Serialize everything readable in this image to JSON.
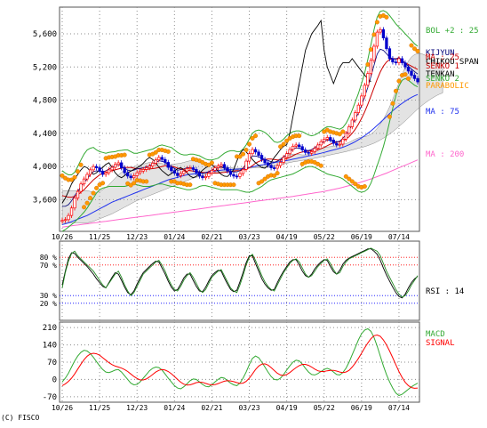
{
  "copyright": "(C) FISCO",
  "colors": {
    "grid": "#8c8c8c",
    "price_up": "#ff0000",
    "price_down": "#0000cc",
    "bollinger": "#33aa33",
    "ma25": "#cc0000",
    "ma75": "#2233ee",
    "ma200": "#ff66cc",
    "kijun": "#000077",
    "tenkan": "#000000",
    "chikou": "#000000",
    "cloud": "#b0b0b0",
    "parabolic": "#ff9900",
    "rsi": "#228822",
    "rsi2": "#000000",
    "macd": "#33aa33",
    "signal": "#ff0000",
    "ref_high": "#ff0000",
    "ref_low": "#0000ff"
  },
  "chart_data": [
    {
      "type": "line",
      "panel": "price",
      "x_tick_labels": [
        "10/26",
        "11/25",
        "12/23",
        "01/24",
        "02/21",
        "03/23",
        "04/19",
        "05/22",
        "06/19",
        "07/14"
      ],
      "y_tick_labels": [
        "5,600",
        "5,200",
        "4,800",
        "4,400",
        "4,000",
        "3,600"
      ],
      "y_ticks": [
        5600,
        5200,
        4800,
        4400,
        4000,
        3600
      ],
      "ylim": [
        3240,
        5900
      ],
      "grid": true,
      "legend": [
        "BOL +2 : 25",
        "KIJYUN",
        "MA : 25",
        "CHIKOU SPAN",
        "SENKO 1",
        "TENKAN",
        "SENKO 2",
        "PARABOLIC",
        "MA : 75",
        "MA : 200"
      ],
      "close": [
        3350,
        3360,
        3410,
        3500,
        3620,
        3700,
        3790,
        3850,
        3905,
        3960,
        4000,
        3985,
        3945,
        3905,
        3925,
        3960,
        3990,
        4025,
        4045,
        3985,
        3925,
        3885,
        3865,
        3890,
        3925,
        3945,
        3965,
        3985,
        4005,
        4040,
        4080,
        4110,
        4085,
        4050,
        3990,
        3950,
        3920,
        3890,
        3915,
        3945,
        3975,
        3985,
        3965,
        3925,
        3885,
        3865,
        3880,
        3920,
        3955,
        3985,
        4005,
        4025,
        3985,
        3945,
        3905,
        3885,
        3880,
        3915,
        3965,
        4065,
        4155,
        4205,
        4175,
        4135,
        4085,
        4045,
        4015,
        3985,
        3980,
        4010,
        4050,
        4110,
        4155,
        4205,
        4245,
        4260,
        4240,
        4200,
        4170,
        4160,
        4180,
        4220,
        4260,
        4300,
        4330,
        4350,
        4320,
        4280,
        4260,
        4270,
        4330,
        4400,
        4480,
        4560,
        4650,
        4740,
        4850,
        4980,
        5120,
        5280,
        5450,
        5620,
        5650,
        5550,
        5420,
        5300,
        5260,
        5250,
        5300,
        5250,
        5200,
        5150,
        5100,
        5060,
        5020
      ],
      "bol_upper": [
        3950,
        3920,
        3900,
        3900,
        3930,
        4000,
        4080,
        4150,
        4200,
        4220,
        4230,
        4200,
        4180,
        4170,
        4160,
        4170,
        4175,
        4180,
        4190,
        4195,
        4200,
        4200,
        4180,
        4160,
        4160,
        4170,
        4180,
        4190,
        4200,
        4210,
        4230,
        4250,
        4260,
        4250,
        4240,
        4230,
        4200,
        4170,
        4150,
        4140,
        4140,
        4150,
        4150,
        4140,
        4130,
        4110,
        4090,
        4080,
        4080,
        4090,
        4100,
        4130,
        4160,
        4180,
        4190,
        4190,
        4180,
        4180,
        4210,
        4260,
        4330,
        4400,
        4430,
        4440,
        4430,
        4410,
        4380,
        4340,
        4300,
        4290,
        4300,
        4330,
        4370,
        4400,
        4420,
        4430,
        4430,
        4420,
        4400,
        4380,
        4370,
        4380,
        4400,
        4430,
        4460,
        4480,
        4480,
        4470,
        4460,
        4450,
        4470,
        4520,
        4590,
        4680,
        4780,
        4880,
        5000,
        5130,
        5290,
        5470,
        5650,
        5800,
        5870,
        5880,
        5860,
        5820,
        5770,
        5720,
        5680,
        5640,
        5600,
        5560,
        5520,
        5480,
        5450
      ],
      "bol_lower": [
        3220,
        3240,
        3270,
        3300,
        3330,
        3370,
        3410,
        3450,
        3500,
        3560,
        3620,
        3680,
        3720,
        3740,
        3750,
        3760,
        3760,
        3760,
        3760,
        3760,
        3760,
        3770,
        3780,
        3790,
        3780,
        3770,
        3760,
        3760,
        3760,
        3770,
        3780,
        3790,
        3790,
        3780,
        3770,
        3760,
        3760,
        3750,
        3740,
        3730,
        3720,
        3720,
        3730,
        3740,
        3760,
        3770,
        3770,
        3760,
        3750,
        3740,
        3730,
        3720,
        3720,
        3720,
        3720,
        3720,
        3720,
        3710,
        3700,
        3690,
        3690,
        3700,
        3720,
        3740,
        3760,
        3790,
        3820,
        3840,
        3850,
        3860,
        3870,
        3880,
        3890,
        3900,
        3910,
        3930,
        3950,
        3970,
        3990,
        4000,
        4000,
        3990,
        3970,
        3950,
        3930,
        3910,
        3900,
        3890,
        3880,
        3870,
        3850,
        3820,
        3790,
        3760,
        3730,
        3700,
        3690,
        3700,
        3730,
        3800,
        3900,
        4010,
        4120,
        4240,
        4380,
        4540,
        4700,
        4850,
        4970,
        5040,
        5060,
        5040,
        5010,
        4980,
        4960
      ],
      "ma25": [
        3650,
        3640,
        3630,
        3630,
        3640,
        3660,
        3690,
        3720,
        3760,
        3800,
        3840,
        3870,
        3900,
        3920,
        3930,
        3940,
        3950,
        3960,
        3970,
        3980,
        3990,
        3990,
        3990,
        3980,
        3975,
        3970,
        3965,
        3965,
        3970,
        3975,
        3980,
        3990,
        4000,
        4010,
        4010,
        4005,
        3995,
        3980,
        3970,
        3960,
        3955,
        3950,
        3945,
        3940,
        3935,
        3930,
        3925,
        3920,
        3920,
        3920,
        3920,
        3925,
        3930,
        3935,
        3940,
        3945,
        3950,
        3950,
        3955,
        3965,
        3985,
        4010,
        4040,
        4060,
        4075,
        4085,
        4090,
        4090,
        4085,
        4080,
        4080,
        4085,
        4095,
        4110,
        4130,
        4150,
        4165,
        4175,
        4180,
        4185,
        4190,
        4195,
        4205,
        4215,
        4230,
        4250,
        4270,
        4285,
        4295,
        4300,
        4310,
        4330,
        4360,
        4400,
        4450,
        4510,
        4580,
        4660,
        4750,
        4850,
        4950,
        5050,
        5140,
        5210,
        5260,
        5290,
        5300,
        5300,
        5290,
        5270,
        5250,
        5230,
        5210,
        5190,
        5170
      ],
      "ma75": [
        3300,
        3310,
        3320,
        3335,
        3350,
        3365,
        3380,
        3395,
        3410,
        3430,
        3450,
        3470,
        3490,
        3510,
        3530,
        3550,
        3570,
        3585,
        3600,
        3615,
        3630,
        3645,
        3660,
        3675,
        3690,
        3705,
        3720,
        3735,
        3750,
        3765,
        3780,
        3795,
        3810,
        3825,
        3840,
        3850,
        3860,
        3870,
        3880,
        3890,
        3900,
        3905,
        3910,
        3915,
        3920,
        3925,
        3930,
        3935,
        3940,
        3945,
        3950,
        3955,
        3960,
        3962,
        3964,
        3966,
        3968,
        3970,
        3974,
        3980,
        3988,
        3996,
        4004,
        4012,
        4020,
        4028,
        4036,
        4042,
        4048,
        4054,
        4060,
        4066,
        4072,
        4080,
        4088,
        4096,
        4104,
        4112,
        4120,
        4128,
        4136,
        4144,
        4152,
        4160,
        4170,
        4180,
        4190,
        4200,
        4210,
        4220,
        4232,
        4246,
        4262,
        4280,
        4300,
        4322,
        4346,
        4372,
        4400,
        4430,
        4462,
        4496,
        4530,
        4566,
        4602,
        4638,
        4672,
        4704,
        4734,
        4762,
        4788,
        4812,
        4834,
        4852,
        4868
      ],
      "ma200": [
        3270,
        3275,
        3280,
        3285,
        3290,
        3295,
        3300,
        3305,
        3310,
        3315,
        3320,
        3325,
        3330,
        3335,
        3340,
        3345,
        3350,
        3355,
        3360,
        3365,
        3370,
        3375,
        3380,
        3385,
        3390,
        3395,
        3400,
        3405,
        3410,
        3415,
        3420,
        3425,
        3430,
        3435,
        3440,
        3445,
        3450,
        3455,
        3460,
        3465,
        3470,
        3475,
        3480,
        3485,
        3490,
        3495,
        3500,
        3505,
        3510,
        3515,
        3520,
        3525,
        3530,
        3535,
        3540,
        3545,
        3550,
        3555,
        3560,
        3565,
        3570,
        3575,
        3580,
        3585,
        3590,
        3595,
        3600,
        3605,
        3610,
        3615,
        3620,
        3625,
        3630,
        3635,
        3640,
        3646,
        3652,
        3658,
        3664,
        3670,
        3676,
        3682,
        3688,
        3694,
        3700,
        3708,
        3716,
        3724,
        3732,
        3740,
        3750,
        3760,
        3770,
        3780,
        3790,
        3802,
        3814,
        3826,
        3838,
        3850,
        3864,
        3878,
        3892,
        3906,
        3920,
        3936,
        3952,
        3968,
        3984,
        4000,
        4016,
        4032,
        4048,
        4064,
        4080
      ],
      "chikou": [
        3560,
        3620,
        3700,
        3790,
        3850,
        3905,
        3960,
        4000,
        3985,
        3945,
        3905,
        3925,
        3960,
        3990,
        4025,
        4045,
        3985,
        3925,
        3885,
        3865,
        3890,
        3925,
        3945,
        3965,
        3985,
        4005,
        4040,
        4080,
        4110,
        4085,
        4050,
        3990,
        3950,
        3920,
        3890,
        3915,
        3945,
        3975,
        3985,
        3965,
        3925,
        3885,
        3865,
        3880,
        3920,
        3955,
        3985,
        4005,
        4025,
        3985,
        3945,
        3905,
        3885,
        3880,
        3915,
        3965,
        4065,
        4155,
        4205,
        4175,
        4135,
        4085,
        4045,
        4015,
        3985,
        3980,
        4010,
        4050,
        4110,
        4155,
        4205,
        4245,
        4260,
        4400,
        4600,
        4800,
        5000,
        5200,
        5400,
        5500,
        5600,
        5650,
        5700,
        5760,
        5400,
        5200,
        5100,
        5000,
        5100,
        5200,
        5250,
        5250,
        5250,
        5300,
        5250,
        5200,
        5150,
        5100,
        5060,
        5020
      ]
    },
    {
      "type": "line",
      "panel": "rsi",
      "y_tick_labels": [
        "80 %",
        "70 %",
        "30 %",
        "20 %"
      ],
      "y_ticks": [
        80,
        70,
        30,
        20
      ],
      "ylim": [
        0,
        100
      ],
      "legend": [
        "RSI : 14"
      ],
      "reference_lines": [
        80,
        70,
        30,
        20
      ],
      "rsi": [
        40,
        60,
        75,
        85,
        88,
        82,
        78,
        74,
        70,
        66,
        62,
        56,
        50,
        44,
        40,
        46,
        52,
        58,
        62,
        54,
        44,
        36,
        30,
        34,
        42,
        50,
        58,
        62,
        66,
        70,
        74,
        76,
        70,
        62,
        52,
        44,
        38,
        36,
        42,
        50,
        56,
        60,
        54,
        46,
        38,
        34,
        38,
        46,
        54,
        58,
        62,
        64,
        56,
        48,
        40,
        36,
        34,
        44,
        56,
        70,
        80,
        84,
        76,
        66,
        56,
        48,
        42,
        38,
        36,
        44,
        52,
        60,
        66,
        72,
        76,
        78,
        74,
        66,
        58,
        54,
        56,
        62,
        68,
        72,
        76,
        78,
        72,
        64,
        58,
        60,
        68,
        74,
        78,
        80,
        82,
        84,
        86,
        88,
        90,
        92,
        90,
        88,
        82,
        72,
        62,
        54,
        46,
        38,
        32,
        28,
        30,
        36,
        44,
        50,
        56
      ],
      "rsi2": [
        44,
        62,
        78,
        86,
        85,
        80,
        76,
        72,
        68,
        63,
        58,
        52,
        47,
        42,
        40,
        47,
        54,
        60,
        58,
        50,
        41,
        34,
        31,
        36,
        45,
        53,
        60,
        64,
        68,
        72,
        75,
        74,
        66,
        58,
        49,
        41,
        36,
        38,
        45,
        53,
        58,
        58,
        50,
        42,
        36,
        35,
        41,
        49,
        56,
        60,
        63,
        62,
        53,
        45,
        38,
        35,
        37,
        48,
        60,
        73,
        82,
        82,
        72,
        62,
        52,
        45,
        40,
        37,
        38,
        47,
        55,
        62,
        68,
        74,
        77,
        77,
        70,
        62,
        56,
        54,
        58,
        65,
        70,
        74,
        77,
        76,
        68,
        61,
        58,
        63,
        71,
        76,
        79,
        81,
        83,
        85,
        87,
        89,
        91,
        91,
        88,
        84,
        76,
        66,
        57,
        49,
        41,
        34,
        29,
        27,
        32,
        40,
        47,
        52,
        55
      ]
    },
    {
      "type": "line",
      "panel": "macd",
      "y_tick_labels": [
        "210",
        "140",
        "70",
        "0",
        "-70"
      ],
      "y_ticks": [
        210,
        140,
        70,
        0,
        -70
      ],
      "ylim": [
        -85,
        225
      ],
      "legend": [
        "MACD",
        "SIGNAL"
      ],
      "macd": [
        -10,
        5,
        25,
        50,
        75,
        95,
        110,
        118,
        115,
        105,
        90,
        72,
        55,
        40,
        30,
        28,
        32,
        38,
        40,
        30,
        15,
        0,
        -15,
        -22,
        -20,
        -10,
        5,
        20,
        35,
        45,
        50,
        48,
        38,
        22,
        5,
        -10,
        -25,
        -35,
        -38,
        -30,
        -18,
        -5,
        2,
        0,
        -10,
        -20,
        -28,
        -30,
        -22,
        -10,
        0,
        8,
        5,
        -5,
        -15,
        -22,
        -25,
        -15,
        5,
        30,
        60,
        85,
        95,
        88,
        70,
        50,
        30,
        12,
        0,
        -2,
        5,
        20,
        38,
        55,
        70,
        78,
        75,
        62,
        45,
        30,
        20,
        18,
        24,
        32,
        40,
        45,
        40,
        30,
        20,
        18,
        28,
        45,
        70,
        100,
        130,
        160,
        185,
        200,
        205,
        195,
        170,
        135,
        95,
        55,
        20,
        -10,
        -35,
        -55,
        -65,
        -60,
        -50,
        -40,
        -30,
        -22,
        -15
      ],
      "signal": [
        -25,
        -18,
        -8,
        5,
        22,
        42,
        62,
        80,
        94,
        103,
        106,
        104,
        98,
        88,
        78,
        68,
        60,
        54,
        50,
        46,
        40,
        32,
        22,
        12,
        4,
        -2,
        -2,
        2,
        10,
        20,
        30,
        37,
        40,
        38,
        32,
        23,
        12,
        0,
        -11,
        -19,
        -23,
        -22,
        -18,
        -13,
        -11,
        -12,
        -16,
        -20,
        -22,
        -21,
        -17,
        -12,
        -7,
        -5,
        -6,
        -9,
        -13,
        -16,
        -15,
        -8,
        5,
        22,
        40,
        54,
        62,
        63,
        58,
        48,
        36,
        25,
        18,
        16,
        20,
        28,
        38,
        48,
        56,
        61,
        61,
        57,
        50,
        42,
        35,
        32,
        32,
        35,
        37,
        37,
        34,
        30,
        28,
        30,
        37,
        50,
        66,
        85,
        106,
        128,
        148,
        165,
        177,
        180,
        175,
        160,
        140,
        115,
        88,
        60,
        32,
        8,
        -12,
        -25,
        -33,
        -36,
        -35
      ],
      "zero_line": true
    }
  ]
}
